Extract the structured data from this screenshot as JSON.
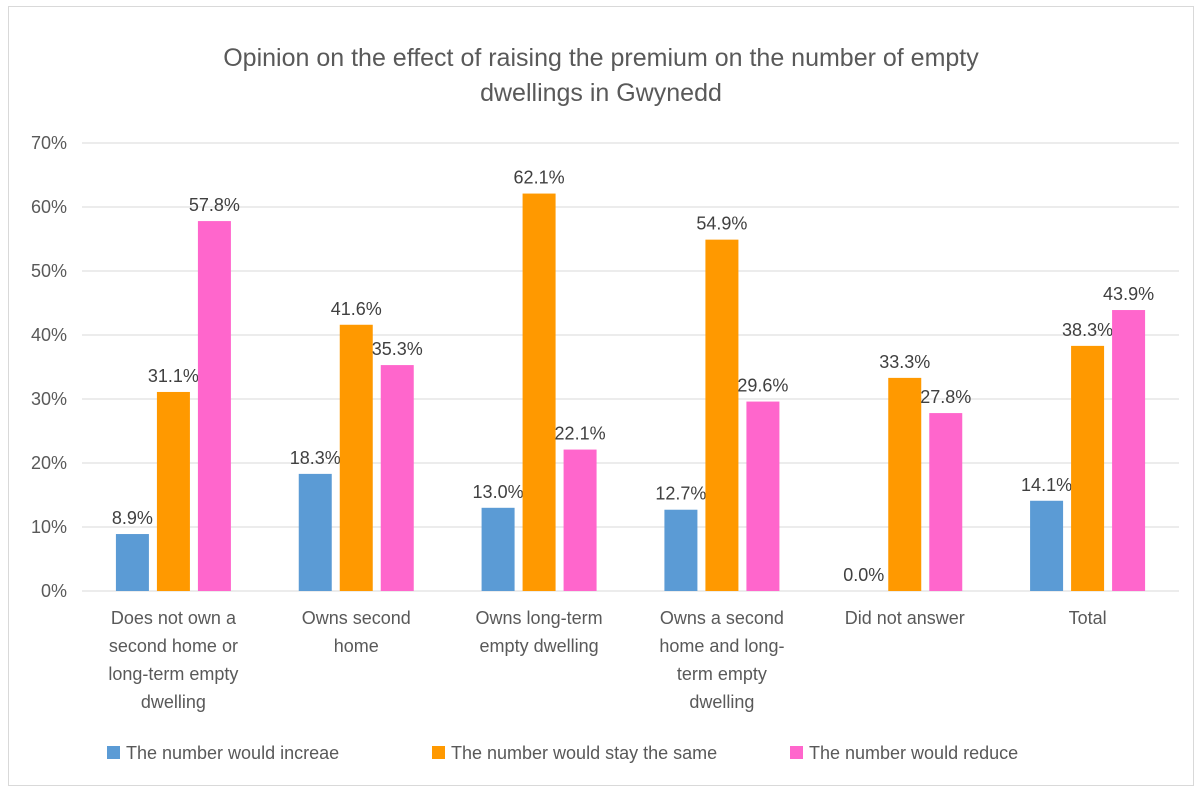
{
  "chart_data": {
    "type": "bar",
    "title_lines": [
      "Opinion on the effect of raising the premium on the number of empty",
      "dwellings in Gwynedd"
    ],
    "categories": [
      "Does not own a second home or long-term empty dwelling",
      "Owns second home",
      "Owns long-term empty dwelling",
      "Owns a second home and long-term empty dwelling",
      "Did not answer",
      "Total"
    ],
    "category_label_lines": [
      [
        "Does not own a",
        "second home or",
        "long-term empty",
        "dwelling"
      ],
      [
        "Owns second",
        "home"
      ],
      [
        "Owns long-term",
        "empty dwelling"
      ],
      [
        "Owns a second",
        "home and long-",
        "term empty",
        "dwelling"
      ],
      [
        "Did not answer"
      ],
      [
        "Total"
      ]
    ],
    "series": [
      {
        "name": "The number would increae",
        "color": "#5b9bd5",
        "values": [
          8.9,
          18.3,
          13.0,
          12.7,
          0.0,
          14.1
        ],
        "labels": [
          "8.9%",
          "18.3%",
          "13.0%",
          "12.7%",
          "0.0%",
          "14.1%"
        ]
      },
      {
        "name": "The number would stay the same",
        "color": "#ff9900",
        "values": [
          31.1,
          41.6,
          62.1,
          54.9,
          33.3,
          38.3
        ],
        "labels": [
          "31.1%",
          "41.6%",
          "62.1%",
          "54.9%",
          "33.3%",
          "38.3%"
        ]
      },
      {
        "name": "The number would reduce",
        "color": "#ff66cc",
        "values": [
          57.8,
          35.3,
          22.1,
          29.6,
          27.8,
          43.9
        ],
        "labels": [
          "57.8%",
          "35.3%",
          "22.1%",
          "29.6%",
          "27.8%",
          "43.9%"
        ]
      }
    ],
    "ylim": [
      0,
      70
    ],
    "yticks": [
      "0%",
      "10%",
      "20%",
      "30%",
      "40%",
      "50%",
      "60%",
      "70%"
    ],
    "grid": true,
    "legend_position": "bottom",
    "xlabel": "",
    "ylabel": ""
  }
}
